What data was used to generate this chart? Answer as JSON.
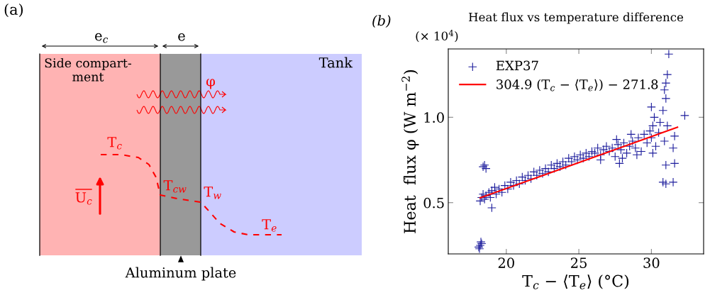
{
  "chart_data": [
    {
      "type": "other",
      "annotations": [
        "(a)",
        "e$_{c}$",
        "e",
        "Side compart-\nment",
        "Tank",
        "φ",
        "T$_{c}$",
        "T$_{cw}$",
        "T$_{w}$",
        "T$_{e}$",
        "U$_{c}$",
        "Aluminum plate"
      ]
    },
    {
      "type": "scatter",
      "title": "Heat flux vs temperature difference",
      "xlabel": "T$_{c}$ − ⟨T$_{e}$⟩ (°C)",
      "ylabel": "Heat  flux φ (W m$^{−2}$)",
      "annotations": [
        "(b)",
        "(× 10$^{4}$)"
      ],
      "xlim": [
        16,
        33.6
      ],
      "ylim": [
        0.2,
        1.4
      ],
      "xticks": [
        20,
        25,
        30
      ],
      "yticks": [
        {
          "value": 0.5,
          "label": "0.5"
        },
        {
          "value": 1.0,
          "label": "1.0"
        }
      ],
      "grid": false,
      "legend": "top left",
      "marker": "cross",
      "series": [
        {
          "name": "EXP37",
          "color": "#1c1c9c",
          "type": "scatter",
          "x": [
            18.1,
            18.2,
            18.3,
            18.15,
            18.25,
            18.4,
            18.5,
            18.6,
            19.0,
            18.2,
            18.3,
            18.4,
            18.5,
            18.6,
            18.8,
            18.9,
            19.0,
            19.2,
            19.3,
            19.5,
            19.7,
            19.9,
            20.1,
            20.3,
            20.5,
            20.7,
            20.9,
            21.1,
            21.3,
            21.5,
            21.7,
            21.9,
            22.1,
            22.3,
            22.5,
            22.7,
            22.9,
            23.1,
            23.3,
            23.5,
            23.7,
            23.9,
            24.1,
            24.3,
            24.5,
            24.7,
            24.9,
            25.1,
            25.3,
            25.5,
            25.7,
            25.9,
            26.1,
            26.3,
            26.5,
            26.7,
            26.9,
            27.1,
            27.3,
            27.5,
            27.7,
            27.9,
            28.1,
            28.3,
            28.5,
            28.7,
            28.9,
            29.1,
            29.3,
            29.5,
            29.7,
            29.9,
            30.0,
            30.1,
            30.3,
            30.5,
            30.0,
            30.2,
            30.6,
            30.8,
            30.9,
            31.0,
            31.1,
            31.2,
            31.0,
            31.1,
            30.9,
            31.0,
            30.8,
            31.0,
            31.5,
            31.6,
            31.5,
            32.3,
            31.6,
            30.1,
            29.0,
            28.0,
            27.8,
            26.5,
            27.6,
            28.6
          ],
          "values": [
            0.24,
            0.25,
            0.26,
            0.23,
            0.27,
            0.71,
            0.72,
            0.7,
            0.47,
            0.51,
            0.53,
            0.55,
            0.52,
            0.54,
            0.56,
            0.53,
            0.57,
            0.59,
            0.55,
            0.58,
            0.56,
            0.6,
            0.58,
            0.62,
            0.6,
            0.63,
            0.61,
            0.65,
            0.63,
            0.66,
            0.64,
            0.68,
            0.66,
            0.69,
            0.67,
            0.7,
            0.68,
            0.72,
            0.7,
            0.73,
            0.71,
            0.74,
            0.72,
            0.76,
            0.74,
            0.77,
            0.75,
            0.78,
            0.76,
            0.79,
            0.77,
            0.8,
            0.79,
            0.82,
            0.78,
            0.81,
            0.83,
            0.8,
            0.82,
            0.77,
            0.84,
            0.81,
            0.85,
            0.79,
            0.83,
            0.86,
            0.82,
            0.88,
            0.8,
            0.9,
            0.85,
            0.92,
            0.88,
            0.95,
            0.83,
            0.91,
            1.06,
            1.0,
            0.97,
            1.04,
            1.16,
            1.2,
            1.25,
            1.37,
            1.11,
            0.95,
            0.86,
            0.72,
            0.62,
            0.61,
            0.82,
            0.73,
            0.62,
            1.01,
            0.89,
            0.79,
            0.78,
            0.76,
            0.73,
            0.75,
            0.87,
            0.9
          ]
        },
        {
          "name": "304.9 (T$_{c}$ − ⟨T$_{e}$⟩) − 271.8",
          "color": "#ff0000",
          "type": "line",
          "marker": "none",
          "x": [
            18.2,
            31.8
          ],
          "values": [
            0.528,
            0.942
          ]
        }
      ]
    }
  ]
}
